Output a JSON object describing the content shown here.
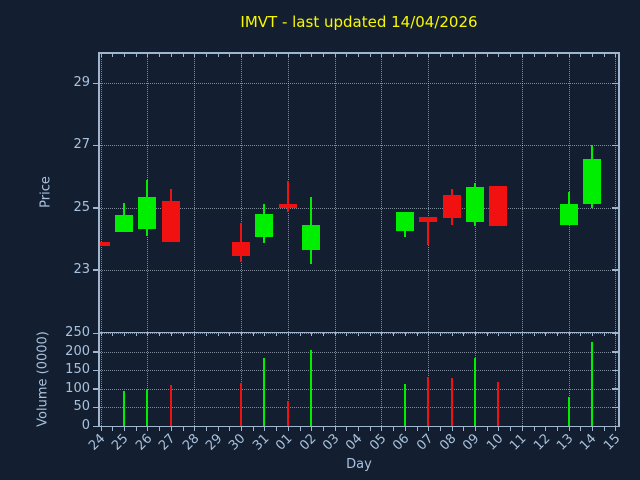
{
  "title": {
    "text": "IMVT - last updated 14/04/2026"
  },
  "colors": {
    "background": "#131f30",
    "spine": "#9fb6ce",
    "tick_text": "#a9c1dd",
    "grid": "#d8e2ee",
    "title": "#f8f800",
    "up": "#00ef00",
    "down": "#f21111"
  },
  "x_categories": [
    "24",
    "25",
    "26",
    "27",
    "28",
    "29",
    "30",
    "31",
    "01",
    "02",
    "03",
    "04",
    "05",
    "06",
    "07",
    "08",
    "09",
    "10",
    "11",
    "12",
    "13",
    "14",
    "15"
  ],
  "xlabel": "Day",
  "chart_data": [
    {
      "type": "candlestick",
      "title": "IMVT - last updated 14/04/2026",
      "xlabel": "Day",
      "ylabel": "Price",
      "ylim": [
        21,
        30
      ],
      "yticks": [
        23,
        25,
        27,
        29
      ],
      "grid": "dotted, horizontal at yticks, vertical every 2nd day",
      "legend": "none",
      "candles": [
        {
          "day": "24",
          "open": 23.9,
          "high": 23.9,
          "low": 23.75,
          "close": 23.75,
          "direction": "down"
        },
        {
          "day": "25",
          "open": 24.2,
          "high": 25.15,
          "low": 24.2,
          "close": 24.75,
          "direction": "up"
        },
        {
          "day": "26",
          "open": 24.3,
          "high": 25.9,
          "low": 24.1,
          "close": 25.35,
          "direction": "up"
        },
        {
          "day": "27",
          "open": 25.2,
          "high": 25.6,
          "low": 23.9,
          "close": 23.9,
          "direction": "down"
        },
        {
          "day": "30",
          "open": 23.9,
          "high": 24.5,
          "low": 23.25,
          "close": 23.45,
          "direction": "down"
        },
        {
          "day": "31",
          "open": 24.05,
          "high": 25.1,
          "low": 23.85,
          "close": 24.8,
          "direction": "up"
        },
        {
          "day": "01",
          "open": 25.1,
          "high": 25.85,
          "low": 24.85,
          "close": 25.0,
          "direction": "down"
        },
        {
          "day": "02",
          "open": 23.65,
          "high": 25.35,
          "low": 23.2,
          "close": 24.45,
          "direction": "up"
        },
        {
          "day": "06",
          "open": 24.25,
          "high": 24.85,
          "low": 24.05,
          "close": 24.85,
          "direction": "up"
        },
        {
          "day": "07",
          "open": 24.7,
          "high": 24.7,
          "low": 23.8,
          "close": 24.55,
          "direction": "down"
        },
        {
          "day": "08",
          "open": 25.4,
          "high": 25.6,
          "low": 24.45,
          "close": 24.65,
          "direction": "down"
        },
        {
          "day": "09",
          "open": 24.55,
          "high": 25.8,
          "low": 24.4,
          "close": 25.65,
          "direction": "up"
        },
        {
          "day": "10",
          "open": 25.7,
          "high": 25.7,
          "low": 24.4,
          "close": 24.4,
          "direction": "down"
        },
        {
          "day": "13",
          "open": 24.45,
          "high": 25.5,
          "low": 24.45,
          "close": 25.1,
          "direction": "up"
        },
        {
          "day": "14",
          "open": 25.1,
          "high": 27.0,
          "low": 25.0,
          "close": 26.55,
          "direction": "up"
        }
      ]
    },
    {
      "type": "bar",
      "ylabel": "Volume (0000)",
      "ylim": [
        0,
        250
      ],
      "yticks": [
        0,
        50,
        100,
        150,
        200,
        250
      ],
      "grid": "dotted, horizontal at yticks, vertical every 2nd day",
      "legend": "none",
      "bars": [
        {
          "day": "25",
          "value": 95,
          "direction": "up"
        },
        {
          "day": "26",
          "value": 98,
          "direction": "up"
        },
        {
          "day": "27",
          "value": 110,
          "direction": "down"
        },
        {
          "day": "30",
          "value": 116,
          "direction": "down"
        },
        {
          "day": "31",
          "value": 183,
          "direction": "up"
        },
        {
          "day": "01",
          "value": 68,
          "direction": "down"
        },
        {
          "day": "02",
          "value": 203,
          "direction": "up"
        },
        {
          "day": "06",
          "value": 112,
          "direction": "up"
        },
        {
          "day": "07",
          "value": 131,
          "direction": "down"
        },
        {
          "day": "08",
          "value": 128,
          "direction": "down"
        },
        {
          "day": "09",
          "value": 182,
          "direction": "up"
        },
        {
          "day": "10",
          "value": 117,
          "direction": "down"
        },
        {
          "day": "13",
          "value": 79,
          "direction": "up"
        },
        {
          "day": "14",
          "value": 226,
          "direction": "up"
        }
      ]
    }
  ]
}
